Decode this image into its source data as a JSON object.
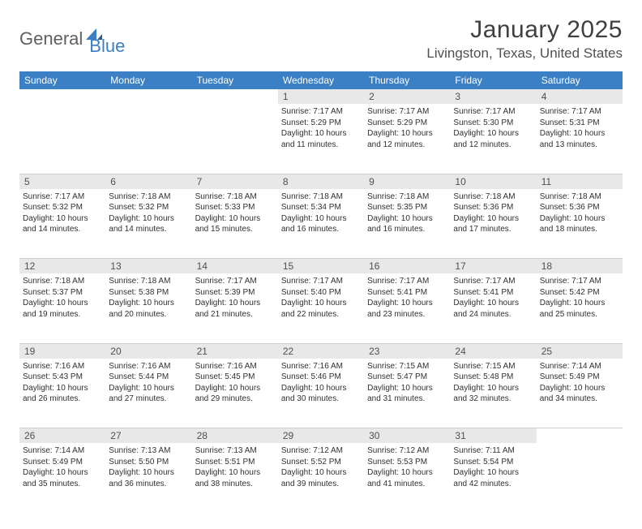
{
  "brand": {
    "part1": "General",
    "part2": "Blue"
  },
  "title": "January 2025",
  "location": "Livingston, Texas, United States",
  "headers": [
    "Sunday",
    "Monday",
    "Tuesday",
    "Wednesday",
    "Thursday",
    "Friday",
    "Saturday"
  ],
  "colors": {
    "header_bg": "#3b7fc4",
    "header_fg": "#ffffff",
    "daynum_bg": "#e8e8e8",
    "border": "#cfcfcf",
    "text": "#303030",
    "logo_gray": "#606060",
    "logo_blue": "#3b7fc4"
  },
  "weeks": [
    [
      null,
      null,
      null,
      {
        "n": "1",
        "sr": "7:17 AM",
        "ss": "5:29 PM",
        "dh": "10",
        "dm": "11"
      },
      {
        "n": "2",
        "sr": "7:17 AM",
        "ss": "5:29 PM",
        "dh": "10",
        "dm": "12"
      },
      {
        "n": "3",
        "sr": "7:17 AM",
        "ss": "5:30 PM",
        "dh": "10",
        "dm": "12"
      },
      {
        "n": "4",
        "sr": "7:17 AM",
        "ss": "5:31 PM",
        "dh": "10",
        "dm": "13"
      }
    ],
    [
      {
        "n": "5",
        "sr": "7:17 AM",
        "ss": "5:32 PM",
        "dh": "10",
        "dm": "14"
      },
      {
        "n": "6",
        "sr": "7:18 AM",
        "ss": "5:32 PM",
        "dh": "10",
        "dm": "14"
      },
      {
        "n": "7",
        "sr": "7:18 AM",
        "ss": "5:33 PM",
        "dh": "10",
        "dm": "15"
      },
      {
        "n": "8",
        "sr": "7:18 AM",
        "ss": "5:34 PM",
        "dh": "10",
        "dm": "16"
      },
      {
        "n": "9",
        "sr": "7:18 AM",
        "ss": "5:35 PM",
        "dh": "10",
        "dm": "16"
      },
      {
        "n": "10",
        "sr": "7:18 AM",
        "ss": "5:36 PM",
        "dh": "10",
        "dm": "17"
      },
      {
        "n": "11",
        "sr": "7:18 AM",
        "ss": "5:36 PM",
        "dh": "10",
        "dm": "18"
      }
    ],
    [
      {
        "n": "12",
        "sr": "7:18 AM",
        "ss": "5:37 PM",
        "dh": "10",
        "dm": "19"
      },
      {
        "n": "13",
        "sr": "7:18 AM",
        "ss": "5:38 PM",
        "dh": "10",
        "dm": "20"
      },
      {
        "n": "14",
        "sr": "7:17 AM",
        "ss": "5:39 PM",
        "dh": "10",
        "dm": "21"
      },
      {
        "n": "15",
        "sr": "7:17 AM",
        "ss": "5:40 PM",
        "dh": "10",
        "dm": "22"
      },
      {
        "n": "16",
        "sr": "7:17 AM",
        "ss": "5:41 PM",
        "dh": "10",
        "dm": "23"
      },
      {
        "n": "17",
        "sr": "7:17 AM",
        "ss": "5:41 PM",
        "dh": "10",
        "dm": "24"
      },
      {
        "n": "18",
        "sr": "7:17 AM",
        "ss": "5:42 PM",
        "dh": "10",
        "dm": "25"
      }
    ],
    [
      {
        "n": "19",
        "sr": "7:16 AM",
        "ss": "5:43 PM",
        "dh": "10",
        "dm": "26"
      },
      {
        "n": "20",
        "sr": "7:16 AM",
        "ss": "5:44 PM",
        "dh": "10",
        "dm": "27"
      },
      {
        "n": "21",
        "sr": "7:16 AM",
        "ss": "5:45 PM",
        "dh": "10",
        "dm": "29"
      },
      {
        "n": "22",
        "sr": "7:16 AM",
        "ss": "5:46 PM",
        "dh": "10",
        "dm": "30"
      },
      {
        "n": "23",
        "sr": "7:15 AM",
        "ss": "5:47 PM",
        "dh": "10",
        "dm": "31"
      },
      {
        "n": "24",
        "sr": "7:15 AM",
        "ss": "5:48 PM",
        "dh": "10",
        "dm": "32"
      },
      {
        "n": "25",
        "sr": "7:14 AM",
        "ss": "5:49 PM",
        "dh": "10",
        "dm": "34"
      }
    ],
    [
      {
        "n": "26",
        "sr": "7:14 AM",
        "ss": "5:49 PM",
        "dh": "10",
        "dm": "35"
      },
      {
        "n": "27",
        "sr": "7:13 AM",
        "ss": "5:50 PM",
        "dh": "10",
        "dm": "36"
      },
      {
        "n": "28",
        "sr": "7:13 AM",
        "ss": "5:51 PM",
        "dh": "10",
        "dm": "38"
      },
      {
        "n": "29",
        "sr": "7:12 AM",
        "ss": "5:52 PM",
        "dh": "10",
        "dm": "39"
      },
      {
        "n": "30",
        "sr": "7:12 AM",
        "ss": "5:53 PM",
        "dh": "10",
        "dm": "41"
      },
      {
        "n": "31",
        "sr": "7:11 AM",
        "ss": "5:54 PM",
        "dh": "10",
        "dm": "42"
      },
      null
    ]
  ],
  "labels": {
    "sunrise": "Sunrise:",
    "sunset": "Sunset:",
    "daylight_prefix": "Daylight:",
    "hours_word": "hours",
    "and_word": "and",
    "minutes_word": "minutes."
  }
}
